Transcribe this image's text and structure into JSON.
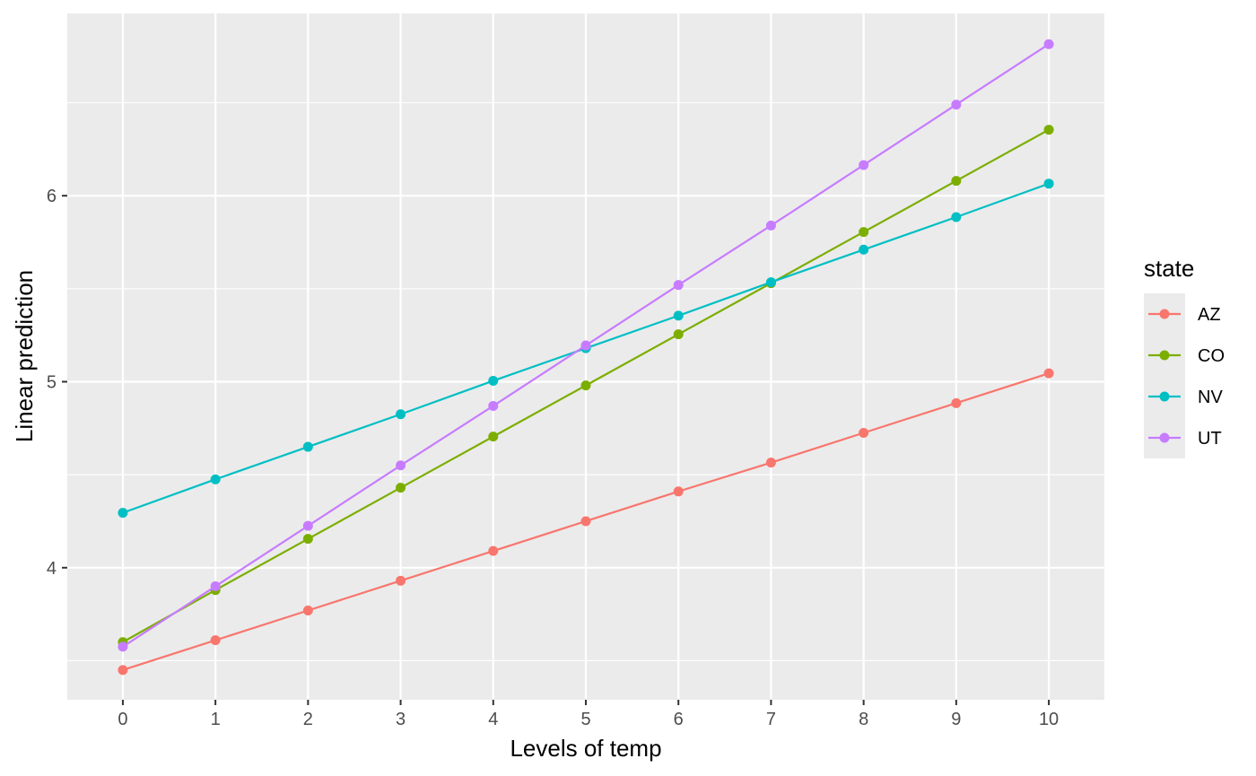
{
  "chart_data": {
    "type": "line",
    "xlabel": "Levels of temp",
    "ylabel": "Linear prediction",
    "x": [
      0,
      1,
      2,
      3,
      4,
      5,
      6,
      7,
      8,
      9,
      10
    ],
    "xlim": [
      -0.6,
      10.6
    ],
    "ylim": [
      3.29,
      6.98
    ],
    "x_ticks": [
      0,
      1,
      2,
      3,
      4,
      5,
      6,
      7,
      8,
      9,
      10
    ],
    "y_ticks": [
      4,
      5,
      6
    ],
    "y_minor_ticks": [
      3.5,
      4.5,
      5.5,
      6.5
    ],
    "grid": true,
    "legend_title": "state",
    "legend_position": "right",
    "panel_background": "#ebebeb",
    "grid_color": "#ffffff",
    "series": [
      {
        "name": "AZ",
        "color": "#F8766D",
        "values": [
          3.45,
          3.61,
          3.77,
          3.93,
          4.09,
          4.25,
          4.41,
          4.565,
          4.725,
          4.885,
          5.045
        ]
      },
      {
        "name": "CO",
        "color": "#7CAE00",
        "values": [
          3.6,
          3.88,
          4.155,
          4.43,
          4.705,
          4.98,
          5.255,
          5.53,
          5.805,
          6.08,
          6.355
        ]
      },
      {
        "name": "NV",
        "color": "#00BFC4",
        "values": [
          4.295,
          4.475,
          4.65,
          4.825,
          5.005,
          5.18,
          5.355,
          5.535,
          5.71,
          5.885,
          6.065
        ]
      },
      {
        "name": "UT",
        "color": "#C77CFF",
        "values": [
          3.575,
          3.9,
          4.225,
          4.55,
          4.87,
          5.195,
          5.52,
          5.84,
          6.165,
          6.49,
          6.815
        ]
      }
    ]
  }
}
